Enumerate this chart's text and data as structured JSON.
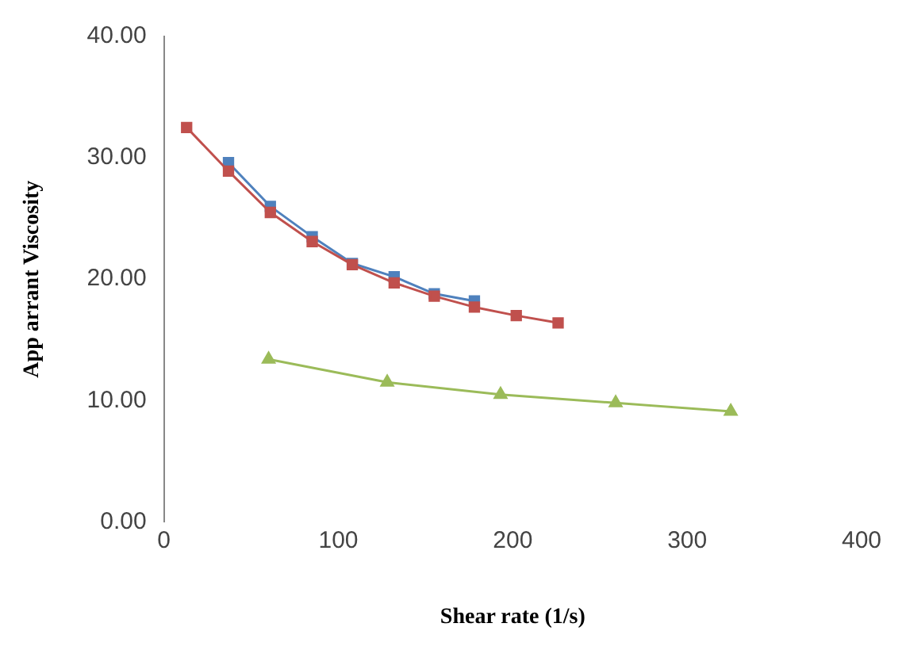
{
  "chart_data": {
    "type": "line",
    "xlabel": "Shear rate (1/s)",
    "ylabel": "App arrant Viscosity",
    "xlim": [
      0,
      400
    ],
    "xticks": [
      0,
      100,
      200,
      300,
      400
    ],
    "ylim": [
      0,
      40
    ],
    "yticks": [
      {
        "value": 0,
        "label": "0.00"
      },
      {
        "value": 10,
        "label": "10.00"
      },
      {
        "value": 20,
        "label": "20.00"
      },
      {
        "value": 30,
        "label": "30.00"
      },
      {
        "value": 40,
        "label": "40.00"
      }
    ],
    "grid": false,
    "legend": false,
    "series": [
      {
        "color": "#4f81bd",
        "marker": "square",
        "x": [
          37,
          61,
          85,
          108,
          132,
          155,
          178
        ],
        "values": [
          29.6,
          26,
          23.5,
          21.3,
          20.2,
          18.8,
          18.2
        ]
      },
      {
        "color": "#c0504d",
        "marker": "square",
        "x": [
          13,
          37,
          61,
          85,
          108,
          132,
          155,
          178,
          202,
          226
        ],
        "values": [
          32.5,
          28.9,
          25.5,
          23.1,
          21.2,
          19.7,
          18.6,
          17.7,
          17,
          16.4
        ]
      },
      {
        "color": "#9bbb59",
        "marker": "triangle",
        "x": [
          60,
          128,
          193,
          259,
          325
        ],
        "values": [
          13.4,
          11.5,
          10.5,
          9.8,
          9.1
        ]
      }
    ]
  }
}
